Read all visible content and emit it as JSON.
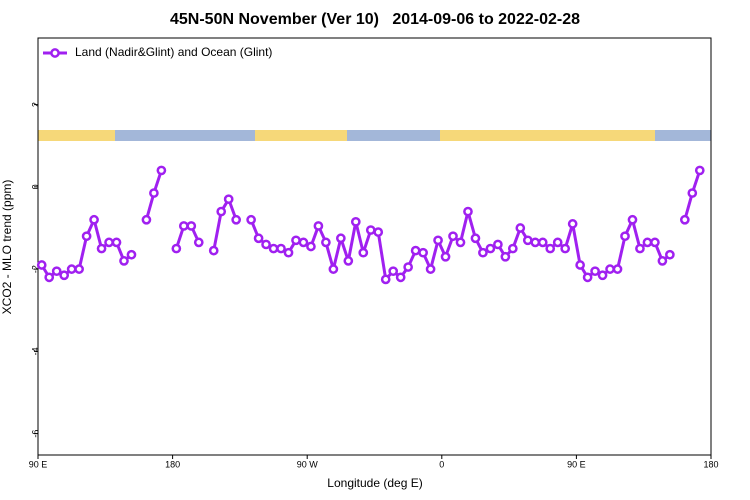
{
  "chart_data": {
    "type": "line",
    "title": "45N-50N November (Ver 10)   2014-09-06 to 2022-02-28",
    "x_label": "Longitude (deg E)",
    "y_label": "XCO2 - MLO trend (ppm)",
    "xlim": [
      90,
      540
    ],
    "ylim": [
      -6.52,
      3.62
    ],
    "xticks": [
      {
        "value": 90,
        "label": "90 E"
      },
      180,
      {
        "value": 270,
        "label": "90 W"
      },
      {
        "value": 360,
        "label": "0"
      },
      {
        "value": 450,
        "label": "90 E"
      },
      {
        "value": 540,
        "label": "180"
      }
    ],
    "yticks": [
      -6,
      -4,
      -2,
      0,
      2
    ],
    "legend": "top-left",
    "x": [
      92.5,
      97.5,
      102.5,
      107.5,
      112.5,
      117.5,
      122.5,
      127.5,
      132.5,
      137.5,
      142.5,
      147.5,
      152.5,
      157.5,
      162.5,
      167.5,
      172.5,
      177.5,
      182.5,
      187.5,
      192.5,
      197.5,
      202.5,
      207.5,
      212.5,
      217.5,
      222.5,
      227.5,
      232.5,
      237.5,
      242.5,
      247.5,
      252.5,
      257.5,
      262.5,
      267.5,
      272.5,
      277.5,
      282.5,
      287.5,
      292.5,
      297.5,
      302.5,
      307.5,
      312.5,
      317.5,
      322.5,
      327.5,
      332.5,
      337.5,
      342.5,
      347.5,
      352.5,
      357.5,
      362.5,
      367.5,
      372.5,
      377.5,
      382.5,
      387.5,
      392.5,
      397.5,
      402.5,
      407.5,
      412.5,
      417.5,
      422.5,
      427.5,
      432.5,
      437.5,
      442.5,
      447.5,
      452.5,
      457.5,
      462.5,
      467.5,
      472.5,
      477.5,
      482.5,
      487.5,
      492.5,
      497.5,
      502.5,
      507.5,
      512.5,
      517.5,
      522.5,
      527.5,
      532.5
    ],
    "series": [
      {
        "name": "Land (Nadir&Glint) and Ocean (Glint)",
        "color": "#a020f0",
        "values": [
          -1.9,
          -2.2,
          -2.05,
          -2.15,
          -2.0,
          -2.0,
          -1.2,
          -0.8,
          -1.5,
          -1.35,
          -1.35,
          -1.8,
          -1.65,
          null,
          -0.8,
          -0.15,
          0.4,
          null,
          -1.5,
          -0.95,
          -0.95,
          -1.35,
          null,
          -1.55,
          -0.6,
          -0.3,
          -0.8,
          null,
          -0.8,
          -1.25,
          -1.4,
          -1.5,
          -1.5,
          -1.6,
          -1.3,
          -1.35,
          -1.45,
          -0.95,
          -1.35,
          -2.0,
          -1.25,
          -1.8,
          -0.85,
          -1.6,
          -1.05,
          -1.1,
          -2.25,
          -2.05,
          -2.2,
          -1.95,
          -1.55,
          -1.6,
          -2.0,
          -1.3,
          -1.7,
          -1.2,
          -1.35,
          -0.6,
          -1.25,
          -1.6,
          -1.5,
          -1.4,
          -1.7,
          -1.5,
          -1.0,
          -1.3,
          -1.35,
          -1.35,
          -1.5,
          -1.35,
          -1.5,
          -0.9,
          -1.9,
          -2.2,
          -2.05,
          -2.15,
          -2.0,
          -2.0,
          -1.2,
          -0.8,
          -1.5,
          -1.35,
          -1.35,
          -1.8,
          -1.65,
          null,
          -0.8,
          -0.15,
          0.4
        ]
      }
    ]
  }
}
